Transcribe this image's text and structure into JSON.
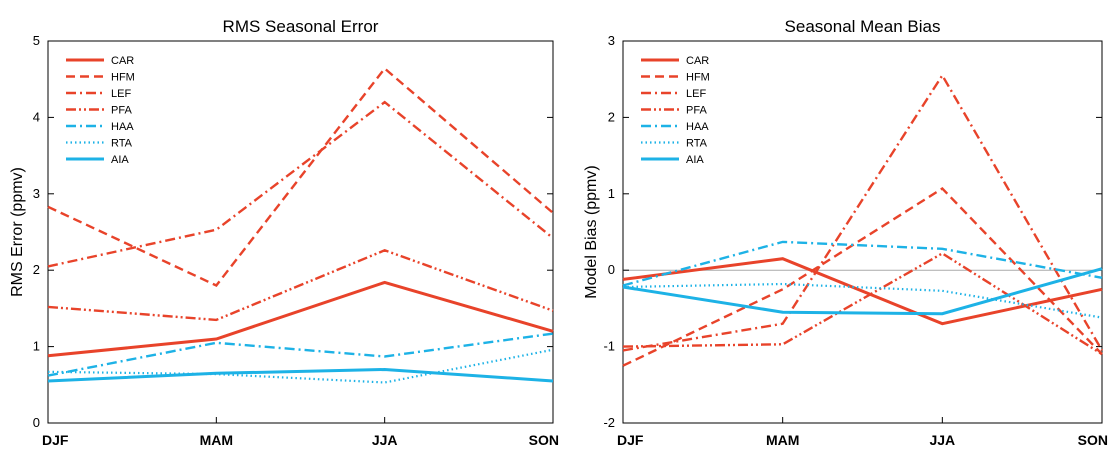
{
  "chart_data": [
    {
      "type": "line",
      "title": "RMS Seasonal Error",
      "xlabel": "",
      "ylabel": "RMS Error (ppmv)",
      "categories": [
        "DJF",
        "MAM",
        "JJA",
        "SON"
      ],
      "ylim": [
        0,
        5
      ],
      "yticks": [
        0,
        1,
        2,
        3,
        4,
        5
      ],
      "zero_line": false,
      "legend_position": "top-left",
      "series": [
        {
          "name": "CAR",
          "color": "#e8432a",
          "dash": "solid",
          "values": [
            0.88,
            1.1,
            1.84,
            1.2
          ]
        },
        {
          "name": "HFM",
          "color": "#e8432a",
          "dash": "dashed",
          "values": [
            2.83,
            1.8,
            4.64,
            2.75
          ]
        },
        {
          "name": "LEF",
          "color": "#e8432a",
          "dash": "dashdot",
          "values": [
            2.05,
            2.53,
            4.2,
            2.42
          ]
        },
        {
          "name": "PFA",
          "color": "#e8432a",
          "dash": "dashdotdot",
          "values": [
            1.52,
            1.35,
            2.26,
            1.47
          ]
        },
        {
          "name": "HAA",
          "color": "#1db2e6",
          "dash": "dashdot",
          "values": [
            0.62,
            1.05,
            0.87,
            1.17
          ]
        },
        {
          "name": "RTA",
          "color": "#1db2e6",
          "dash": "dotted",
          "values": [
            0.67,
            0.64,
            0.53,
            0.96
          ]
        },
        {
          "name": "AIA",
          "color": "#1db2e6",
          "dash": "solid",
          "values": [
            0.55,
            0.65,
            0.7,
            0.55
          ]
        }
      ]
    },
    {
      "type": "line",
      "title": "Seasonal Mean Bias",
      "xlabel": "",
      "ylabel": "Model Bias (ppmv)",
      "categories": [
        "DJF",
        "MAM",
        "JJA",
        "SON"
      ],
      "ylim": [
        -2,
        3
      ],
      "yticks": [
        -2,
        -1,
        0,
        1,
        2,
        3
      ],
      "zero_line": true,
      "legend_position": "top-left",
      "series": [
        {
          "name": "CAR",
          "color": "#e8432a",
          "dash": "solid",
          "values": [
            -0.12,
            0.15,
            -0.7,
            -0.25
          ]
        },
        {
          "name": "HFM",
          "color": "#e8432a",
          "dash": "dashed",
          "values": [
            -1.25,
            -0.25,
            1.07,
            -1.1
          ]
        },
        {
          "name": "LEF",
          "color": "#e8432a",
          "dash": "dashdot",
          "values": [
            -1.05,
            -0.7,
            2.55,
            -1.05
          ]
        },
        {
          "name": "PFA",
          "color": "#e8432a",
          "dash": "dashdotdot",
          "values": [
            -1.0,
            -0.97,
            0.22,
            -1.1
          ]
        },
        {
          "name": "HAA",
          "color": "#1db2e6",
          "dash": "dashdot",
          "values": [
            -0.2,
            0.37,
            0.28,
            -0.1
          ]
        },
        {
          "name": "RTA",
          "color": "#1db2e6",
          "dash": "dotted",
          "values": [
            -0.22,
            -0.18,
            -0.27,
            -0.62
          ]
        },
        {
          "name": "AIA",
          "color": "#1db2e6",
          "dash": "solid",
          "values": [
            -0.22,
            -0.55,
            -0.57,
            0.02
          ]
        }
      ]
    }
  ]
}
